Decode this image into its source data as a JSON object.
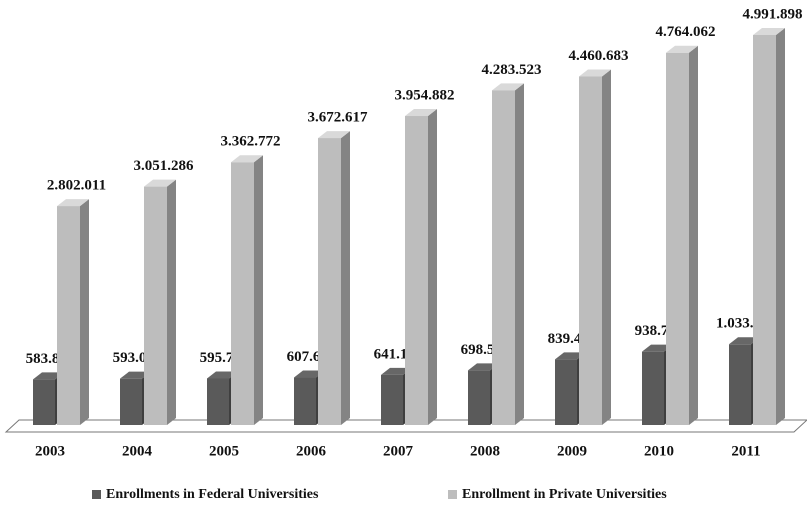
{
  "chart_data": {
    "type": "bar",
    "categories": [
      "2003",
      "2004",
      "2005",
      "2006",
      "2007",
      "2008",
      "2009",
      "2010",
      "2011"
    ],
    "series": [
      {
        "name": "Enrollments in Federal Universities",
        "color": "#5a5a5a",
        "values": [
          583843,
          593008,
          595710,
          607609,
          641183,
          698551,
          839432,
          938704,
          1033014
        ],
        "value_labels": [
          "583.843",
          "593.008",
          "595.710",
          "607.609",
          "641.183",
          "698.551",
          "839.432",
          "938.704",
          "1.033.014"
        ]
      },
      {
        "name": "Enrollment in Private Universities",
        "color": "#bdbdbd",
        "values": [
          2802011,
          3051286,
          3362772,
          3672617,
          3954882,
          4283523,
          4460683,
          4764062,
          4991898
        ],
        "value_labels": [
          "2.802.011",
          "3.051.286",
          "3.362.772",
          "3.672.617",
          "3.954.882",
          "4.283.523",
          "4.460.683",
          "4.764.062",
          "4.991.898"
        ]
      }
    ]
  }
}
